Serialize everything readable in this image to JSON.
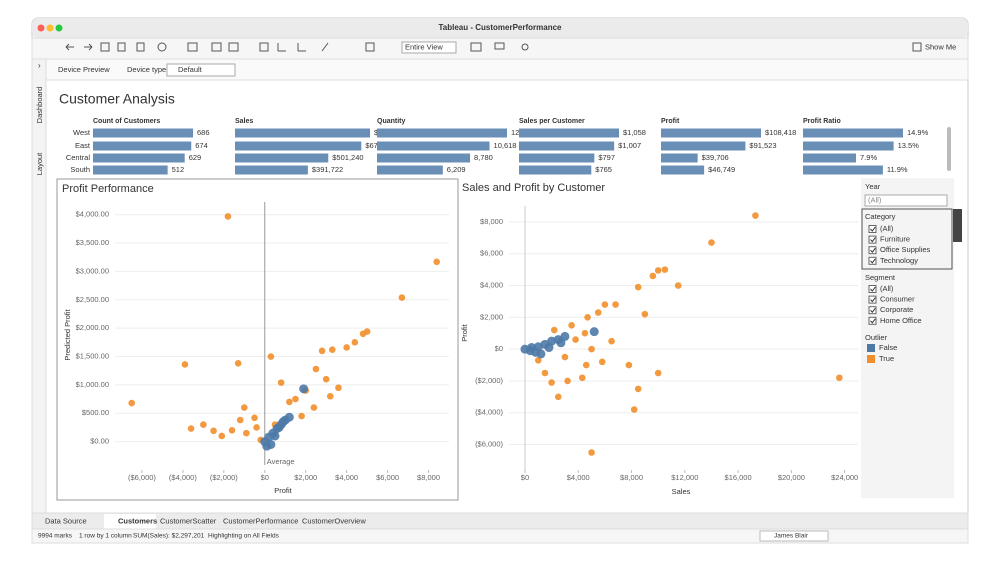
{
  "window": {
    "title": "Tableau - CustomerPerformance"
  },
  "toolbar": {
    "view_mode": "Entire View",
    "show_me": "Show Me"
  },
  "device_bar": {
    "preview": "Device Preview",
    "type_label": "Device type",
    "type_value": "Default"
  },
  "side_tabs": [
    "Dashboard",
    "Layout"
  ],
  "dashboard": {
    "title": "Customer Analysis"
  },
  "filters": {
    "year": {
      "title": "Year",
      "value": "(All)"
    },
    "category": {
      "title": "Category",
      "options": [
        "(All)",
        "Furniture",
        "Office Supplies",
        "Technology"
      ]
    },
    "segment": {
      "title": "Segment",
      "options": [
        "(All)",
        "Consumer",
        "Corporate",
        "Home Office"
      ]
    },
    "outlier": {
      "title": "Outlier"
    }
  },
  "tabs": [
    "Data Source",
    "Customers",
    "CustomerScatter",
    "CustomerPerformance",
    "CustomerOverview"
  ],
  "status": [
    "9994 marks",
    "1 row by 1 column",
    "SUM(Sales): $2,297,201",
    "Highlighting on All Fields"
  ],
  "user": "James Blair",
  "chart_data": [
    {
      "type": "bar",
      "title": "Count of Customers",
      "categories": [
        "West",
        "East",
        "Central",
        "South"
      ],
      "values": [
        686,
        674,
        629,
        512
      ],
      "color": "#6a8fb7"
    },
    {
      "type": "bar",
      "title": "Sales",
      "values": [
        725458,
        678781,
        501240,
        391722
      ],
      "value_labels": [
        "$725,458",
        "$678,781",
        "$501,240",
        "$391,722"
      ],
      "color": "#6a8fb7"
    },
    {
      "type": "bar",
      "title": "Quantity",
      "values": [
        12266,
        10618,
        8780,
        6209
      ],
      "value_labels": [
        "12,266",
        "10,618",
        "8,780",
        "6,209"
      ],
      "color": "#6a8fb7"
    },
    {
      "type": "bar",
      "title": "Sales per Customer",
      "values": [
        1058,
        1007,
        797,
        765
      ],
      "value_labels": [
        "$1,058",
        "$1,007",
        "$797",
        "$765"
      ],
      "color": "#6a8fb7"
    },
    {
      "type": "bar",
      "title": "Profit",
      "values": [
        108418,
        91523,
        39706,
        46749
      ],
      "value_labels": [
        "$108,418",
        "$91,523",
        "$39,706",
        "$46,749"
      ],
      "color": "#6a8fb7"
    },
    {
      "type": "bar",
      "title": "Profit Ratio",
      "values": [
        14.9,
        13.5,
        7.9,
        11.9
      ],
      "value_labels": [
        "14.9%",
        "13.5%",
        "7.9%",
        "11.9%"
      ],
      "color": "#6a8fb7"
    },
    {
      "type": "scatter",
      "title": "Profit Performance",
      "x_label": "Profit",
      "y_label": "Predicted Profit",
      "grid": true,
      "xlim": [
        -8000,
        9000
      ],
      "ylim": [
        -500,
        4400
      ],
      "xticks": [
        {
          "value": -6000,
          "label": "($6,000)"
        },
        {
          "value": -4000,
          "label": "($4,000)"
        },
        {
          "value": -2000,
          "label": "($2,000)"
        },
        {
          "value": 0,
          "label": "$0"
        },
        {
          "value": 2000,
          "label": "$2,000"
        },
        {
          "value": 4000,
          "label": "$4,000"
        },
        {
          "value": 6000,
          "label": "$6,000"
        },
        {
          "value": 8000,
          "label": "$8,000"
        }
      ],
      "yticks": [
        {
          "value": 0,
          "label": "$0.00"
        },
        {
          "value": 500,
          "label": "$500.00"
        },
        {
          "value": 1000,
          "label": "$1,000.00"
        },
        {
          "value": 1500,
          "label": "$1,500.00"
        },
        {
          "value": 2000,
          "label": "$2,000.00"
        },
        {
          "value": 2500,
          "label": "$2,500.00"
        },
        {
          "value": 3000,
          "label": "$3,000.00"
        },
        {
          "value": 3500,
          "label": "$3,500.00"
        },
        {
          "value": 4000,
          "label": "$4,000.00"
        }
      ],
      "reference_line": {
        "label": "Average",
        "value": 0
      },
      "series": [
        {
          "name": "False",
          "color": "#4e79a7",
          "x": [
            0,
            200,
            400,
            600,
            800,
            1000,
            1200,
            300,
            500,
            700,
            900,
            100,
            1900
          ],
          "values": [
            0,
            80,
            150,
            230,
            300,
            380,
            430,
            -50,
            100,
            250,
            350,
            -80,
            930
          ]
        },
        {
          "name": "True",
          "color": "#f28e2b",
          "x": [
            -1800,
            8400,
            6700,
            5000,
            4800,
            4400,
            4000,
            3300,
            2800,
            -6500,
            -3900,
            -1300,
            300,
            2500,
            3000,
            3600,
            2000,
            1500,
            -3600,
            -3000,
            -2500,
            -1600,
            -1000,
            -500,
            -900,
            -200,
            800,
            1200,
            2400,
            3200,
            500,
            -400,
            1800,
            -2100,
            -1200
          ],
          "values": [
            3970,
            3170,
            2540,
            1940,
            1900,
            1750,
            1660,
            1620,
            1600,
            680,
            1360,
            1380,
            1500,
            1280,
            1100,
            950,
            900,
            750,
            230,
            300,
            190,
            200,
            600,
            420,
            150,
            30,
            1040,
            700,
            600,
            800,
            300,
            250,
            450,
            100,
            380
          ]
        }
      ]
    },
    {
      "type": "scatter",
      "title": "Sales and Profit by Customer",
      "x_label": "Sales",
      "y_label": "Profit",
      "grid": true,
      "xlim": [
        -3000,
        25000
      ],
      "ylim": [
        -7600,
        9000
      ],
      "xticks": [
        {
          "value": 0,
          "label": "$0"
        },
        {
          "value": 4000,
          "label": "$4,000"
        },
        {
          "value": 8000,
          "label": "$8,000"
        },
        {
          "value": 12000,
          "label": "$12,000"
        },
        {
          "value": 16000,
          "label": "$16,000"
        },
        {
          "value": 20000,
          "label": "$20,000"
        },
        {
          "value": 24000,
          "label": "$24,000"
        }
      ],
      "yticks": [
        {
          "value": -6000,
          "label": "($6,000)"
        },
        {
          "value": -4000,
          "label": "($4,000)"
        },
        {
          "value": -2000,
          "label": "($2,000)"
        },
        {
          "value": 0,
          "label": "$0"
        },
        {
          "value": 2000,
          "label": "$2,000"
        },
        {
          "value": 4000,
          "label": "$4,000"
        },
        {
          "value": 6000,
          "label": "$6,000"
        },
        {
          "value": 8000,
          "label": "$8,000"
        }
      ],
      "series": [
        {
          "name": "False",
          "color": "#4e79a7",
          "x": [
            0,
            500,
            1000,
            1500,
            2000,
            2500,
            3000,
            800,
            1200,
            1800,
            400,
            5200,
            2700
          ],
          "values": [
            0,
            100,
            150,
            300,
            500,
            600,
            800,
            -200,
            -300,
            100,
            -100,
            1100,
            400
          ]
        },
        {
          "name": "True",
          "color": "#f28e2b",
          "x": [
            17300,
            14000,
            10500,
            10000,
            9600,
            11500,
            8500,
            9000,
            6800,
            23600,
            5000,
            8200,
            8500,
            7800,
            10000,
            6000,
            5500,
            4700,
            3500,
            4500,
            2000,
            2500,
            1500,
            3200,
            4300,
            3000,
            5000,
            5800,
            6500,
            2200,
            3800,
            1000,
            4600
          ],
          "values": [
            8400,
            6700,
            5000,
            4950,
            4600,
            4000,
            3900,
            2200,
            2800,
            -1800,
            -6500,
            -3800,
            -2500,
            -1000,
            -1500,
            2800,
            2300,
            2000,
            1500,
            1000,
            -2100,
            -3000,
            -1500,
            -2000,
            -1800,
            -500,
            0,
            -800,
            500,
            1200,
            600,
            -700,
            -1000
          ]
        }
      ]
    }
  ]
}
